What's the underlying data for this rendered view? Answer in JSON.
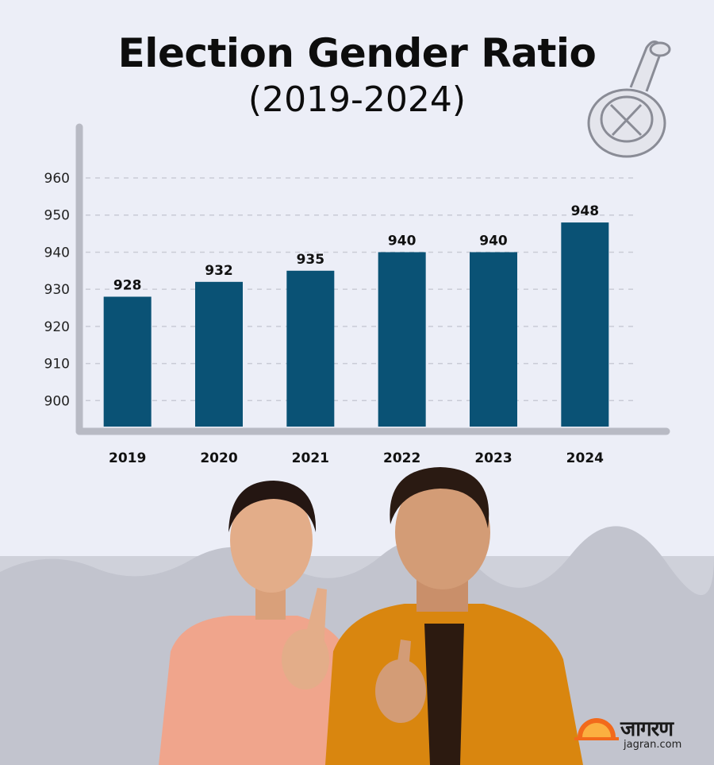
{
  "title": {
    "line1": "Election Gender Ratio",
    "line2": "(2019-2024)"
  },
  "chart_data": {
    "type": "bar",
    "title": "Election Gender Ratio (2019-2024)",
    "categories": [
      "2019",
      "2020",
      "2021",
      "2022",
      "2023",
      "2024"
    ],
    "values": [
      928,
      932,
      935,
      940,
      940,
      948
    ],
    "yticks": [
      900,
      910,
      920,
      930,
      940,
      950,
      960
    ],
    "ylim": [
      893,
      963
    ],
    "grid": true,
    "bar_color": "#0a5275"
  },
  "logo": {
    "word": "जागरण",
    "site": "jagran.com"
  },
  "colors": {
    "background": "#eceef7",
    "bar": "#0a5275",
    "axis": "#b8bac4",
    "grid": "#c9cbd6",
    "logo_sun": "#f26a1b"
  }
}
